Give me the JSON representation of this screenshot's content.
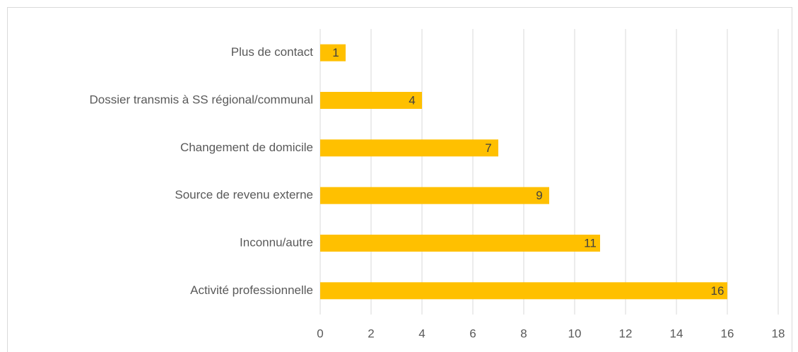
{
  "chart_data": {
    "type": "barh",
    "categories": [
      "Plus de contact",
      "Dossier transmis à SS régional/communal",
      "Changement de domicile",
      "Source de revenu externe",
      "Inconnu/autre",
      "Activité professionnelle"
    ],
    "values": [
      1,
      4,
      7,
      9,
      11,
      16
    ],
    "color": "#ffc000",
    "xlim": [
      0,
      18
    ],
    "xticks": [
      0,
      2,
      4,
      6,
      8,
      10,
      12,
      14,
      16,
      18
    ],
    "grid": true
  }
}
